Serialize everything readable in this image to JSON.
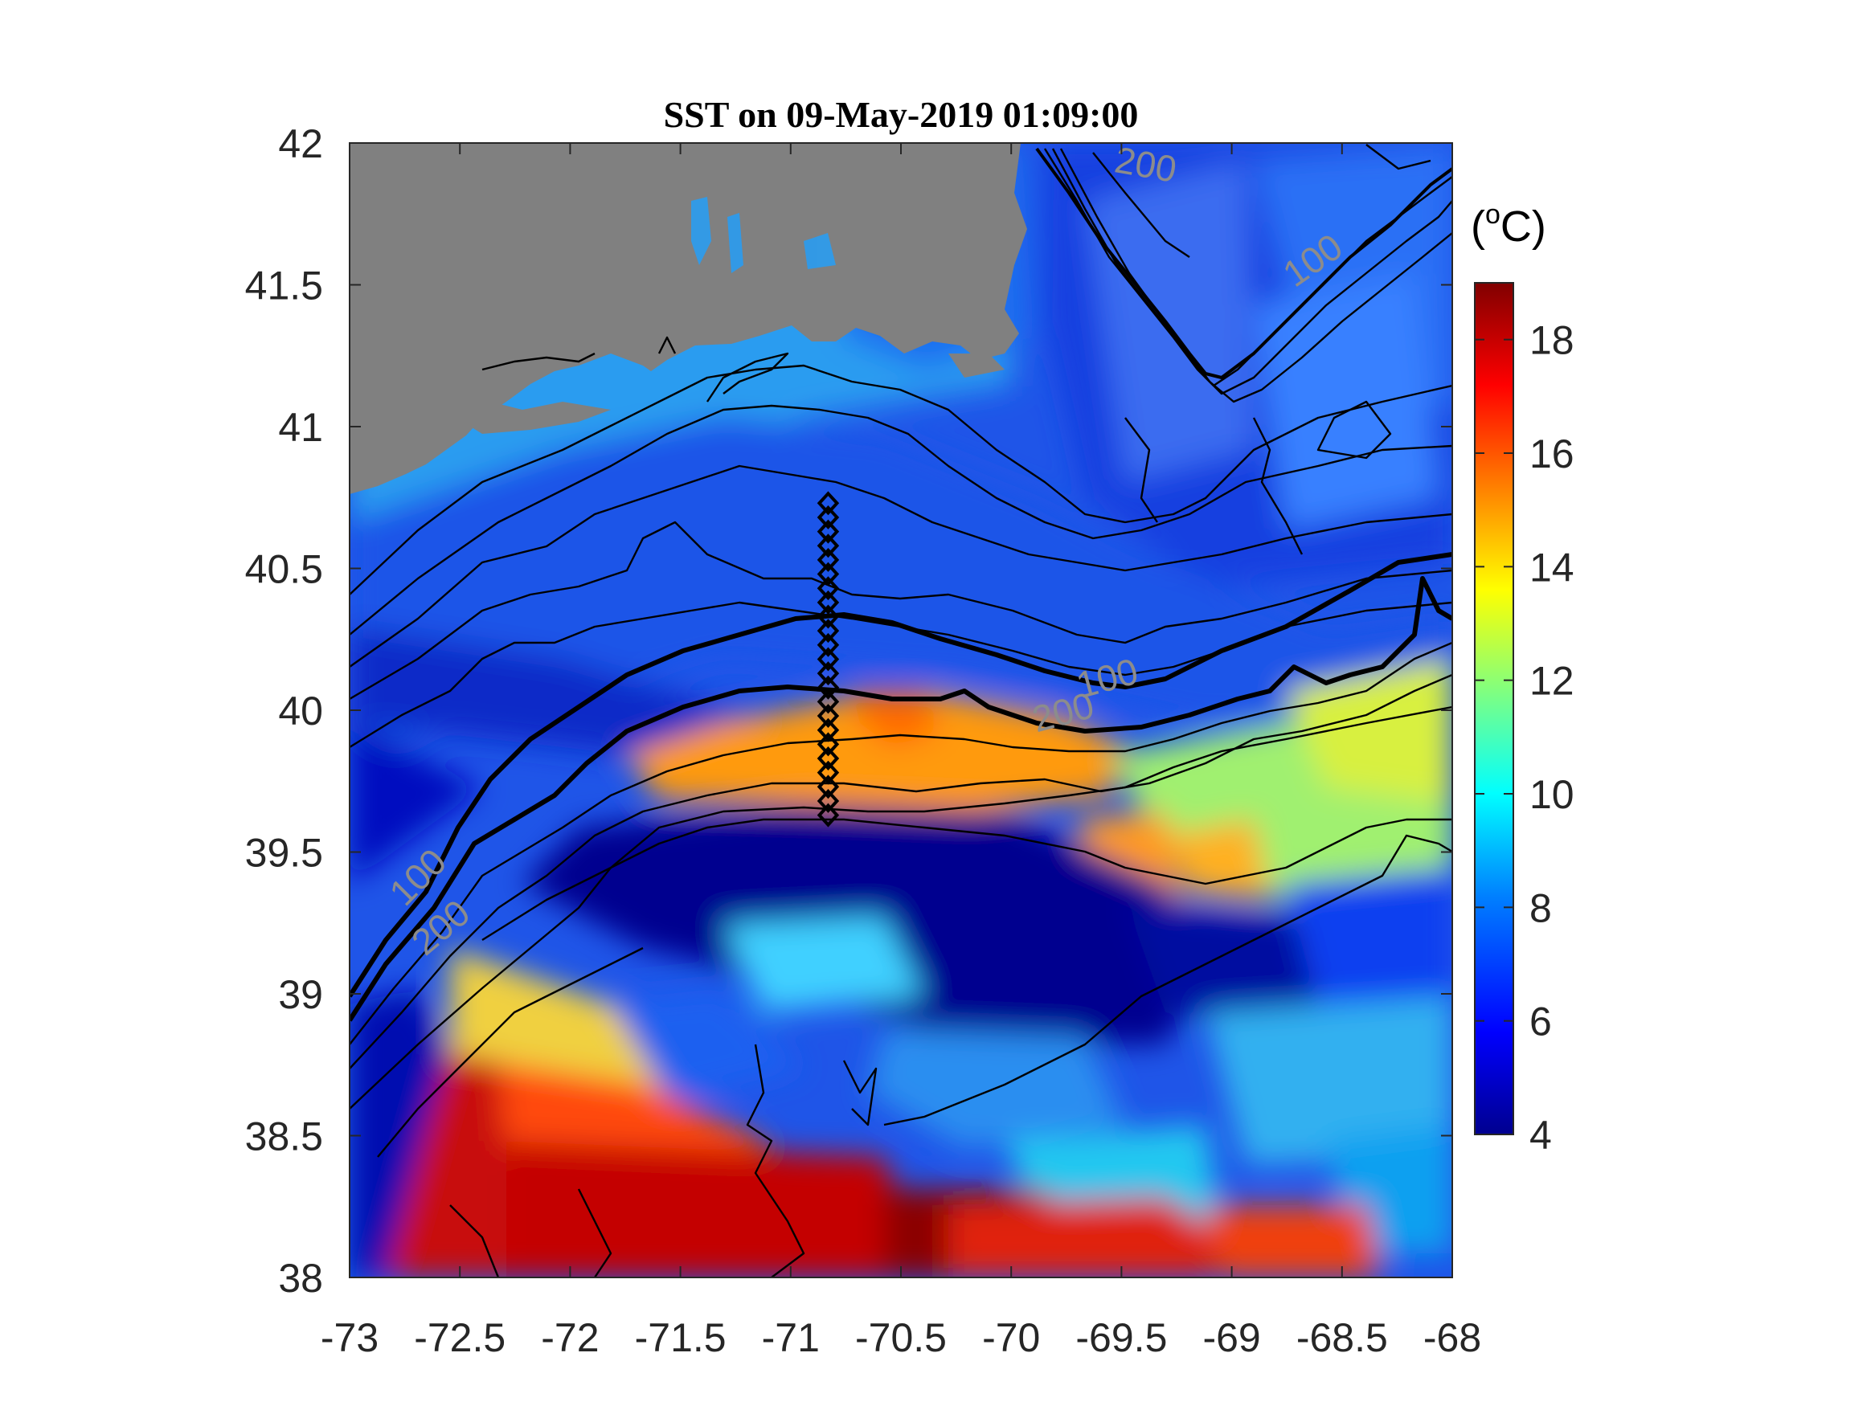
{
  "title": "SST on 09-May-2019 01:09:00",
  "colorbar": {
    "unit_open": "(",
    "unit_sup": "o",
    "unit_close": "C)",
    "min": 4,
    "max": 19,
    "ticks": [
      "4",
      "6",
      "8",
      "10",
      "12",
      "14",
      "16",
      "18"
    ],
    "colormap": [
      "#00008f",
      "#0000ff",
      "#0080ff",
      "#00ffff",
      "#80ff80",
      "#ffff00",
      "#ff8000",
      "#ff0000",
      "#800000"
    ]
  },
  "axes": {
    "xlim": [
      -73,
      -68
    ],
    "ylim": [
      38,
      42
    ],
    "xticks": [
      "-73",
      "-72.5",
      "-72",
      "-71.5",
      "-71",
      "-70.5",
      "-70",
      "-69.5",
      "-69",
      "-68.5",
      "-68"
    ],
    "yticks": [
      "38",
      "38.5",
      "39",
      "39.5",
      "40",
      "40.5",
      "41",
      "41.5",
      "42"
    ]
  },
  "land_color": "#808080",
  "contour_labels": [
    {
      "text": "200",
      "lon": -69.4,
      "lat": 41.88
    },
    {
      "text": "100",
      "lon": -68.6,
      "lat": 41.55
    },
    {
      "text": "100",
      "lon": -69.55,
      "lat": 40.07
    },
    {
      "text": "200",
      "lon": -69.75,
      "lat": 39.95
    },
    {
      "text": "100",
      "lon": -72.65,
      "lat": 39.38
    },
    {
      "text": "200",
      "lon": -72.55,
      "lat": 39.2
    }
  ],
  "stations": {
    "lon": -70.83,
    "lats": [
      40.73,
      40.68,
      40.63,
      40.58,
      40.53,
      40.48,
      40.43,
      40.38,
      40.33,
      40.28,
      40.23,
      40.18,
      40.13,
      40.08,
      40.03,
      39.98,
      39.93,
      39.88,
      39.83,
      39.78,
      39.73,
      39.68,
      39.63
    ]
  }
}
